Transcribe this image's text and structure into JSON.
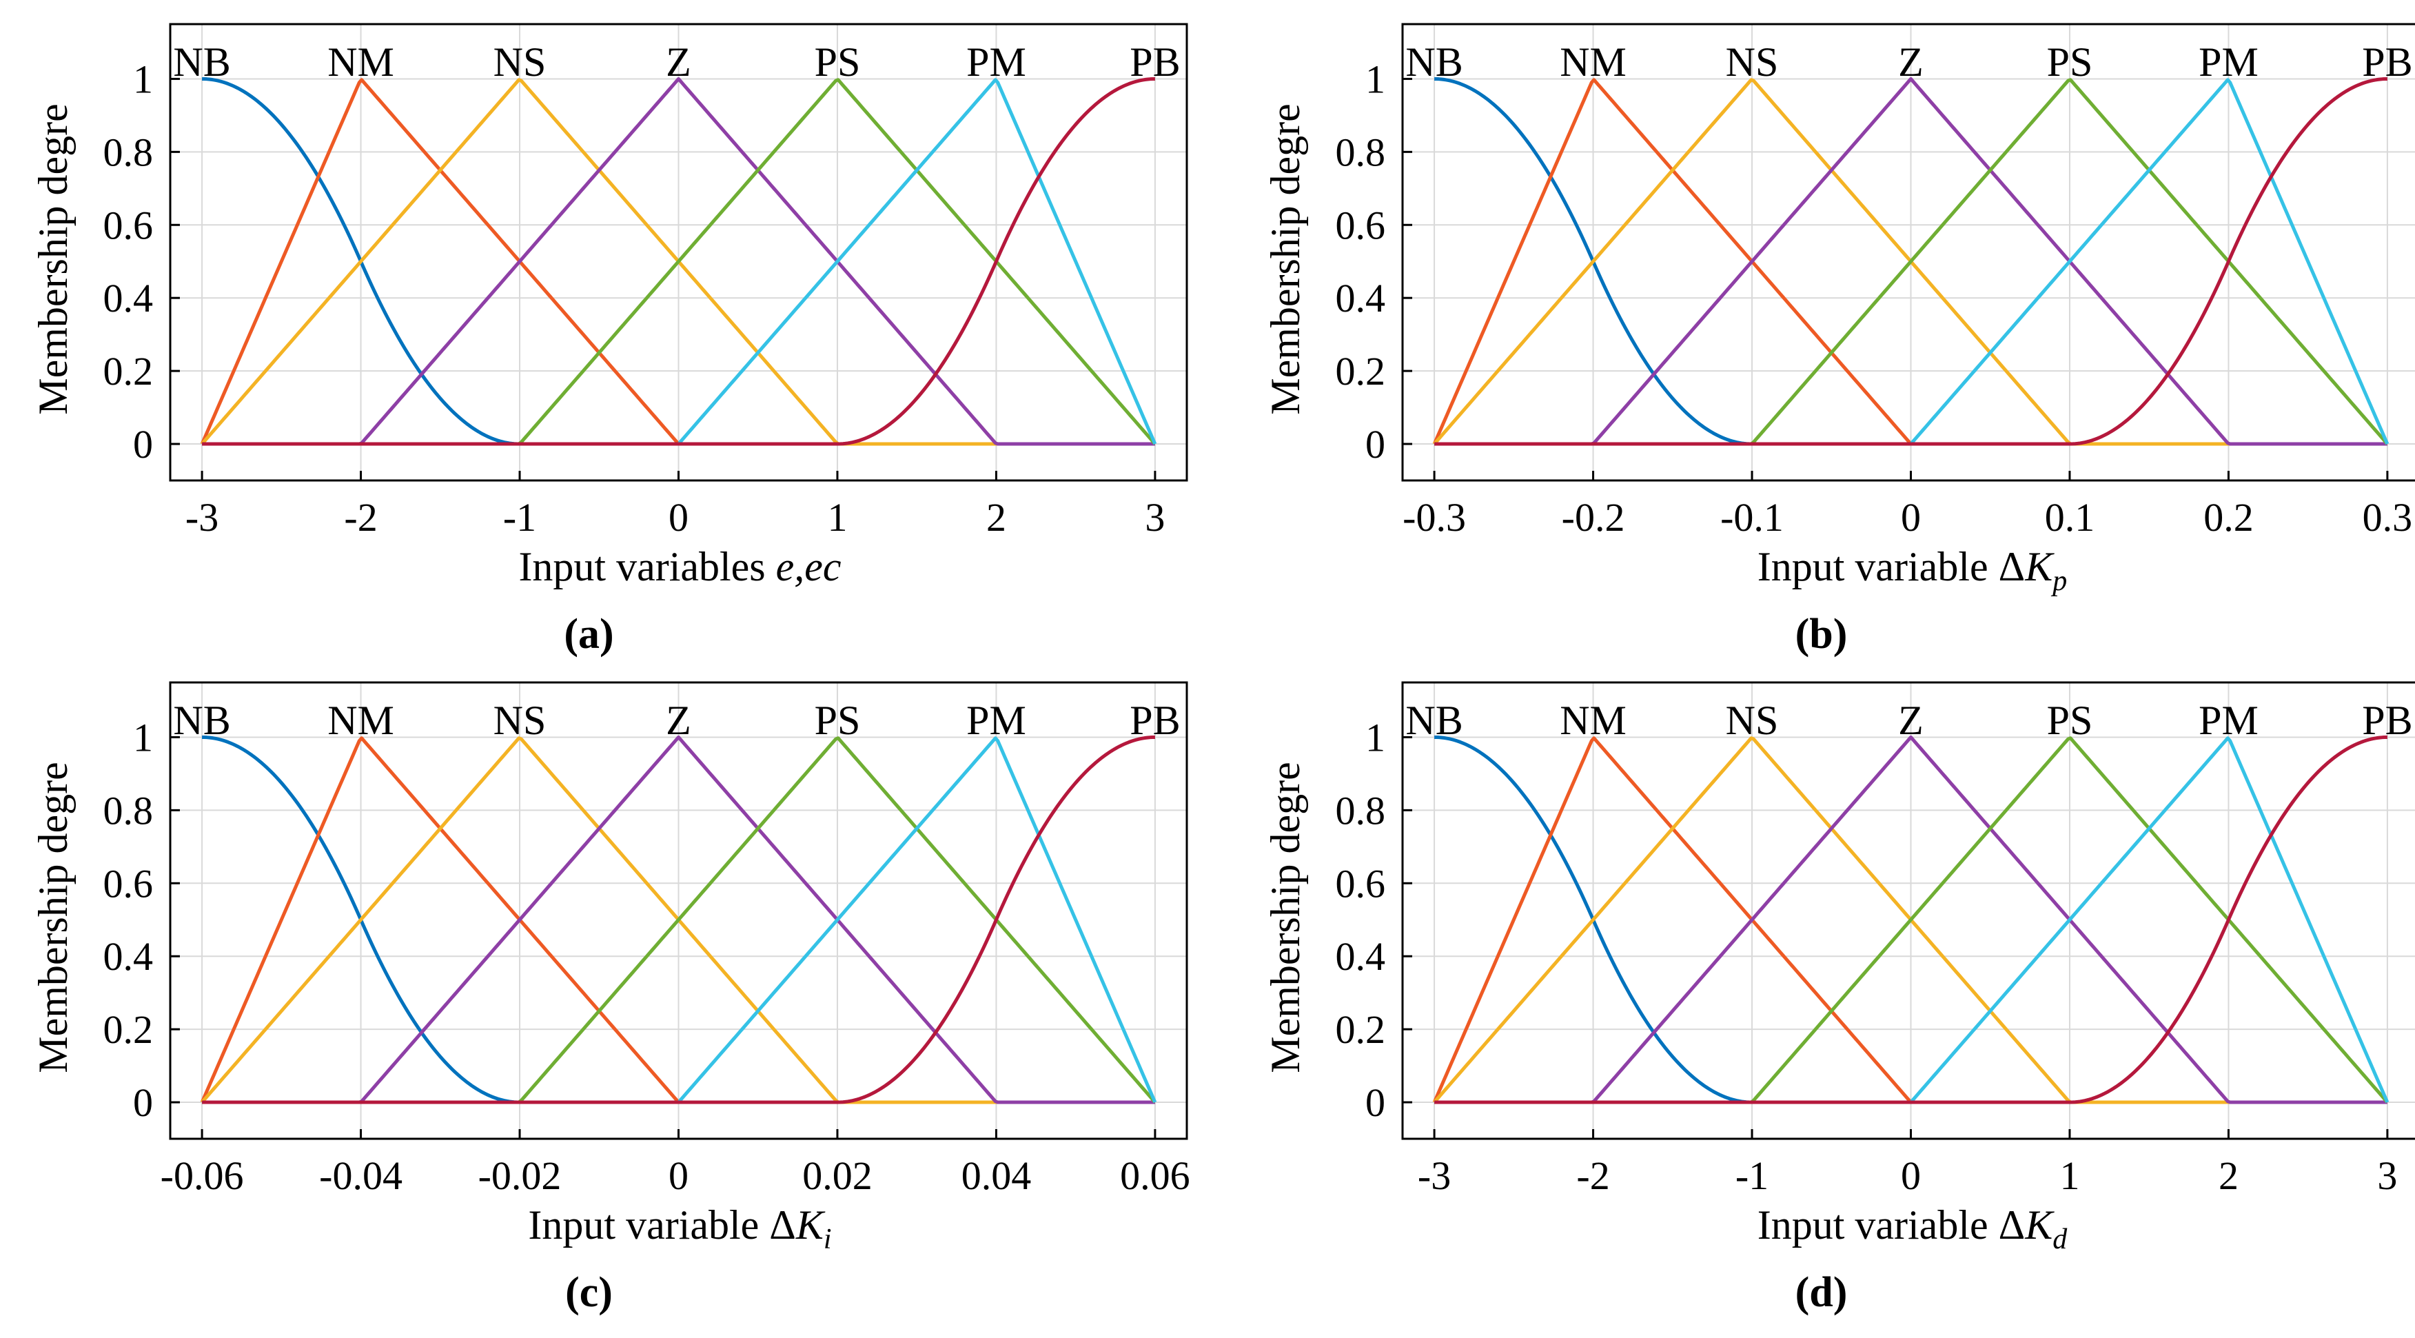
{
  "figure": {
    "colors": {
      "NB": "#0072BD",
      "NM": "#EE5A24",
      "NS": "#F4B324",
      "Z": "#8E3FA6",
      "PS": "#6FAE33",
      "PM": "#35C2E6",
      "PB": "#B5183C",
      "grid": "#d9d9d9",
      "axis": "#000000"
    }
  },
  "chart_data": [
    {
      "id": "a",
      "type": "line",
      "caption": "(a)",
      "ylabel": "Membership degre",
      "xlabel_prefix": "Input variables ",
      "xlabel_var": "e,ec",
      "xlabel_sub": "",
      "xlim": [
        -3.2,
        3.2
      ],
      "ylim": [
        -0.1,
        1.15
      ],
      "x_ticks": [
        -3,
        -2,
        -1,
        0,
        1,
        2,
        3
      ],
      "x_tick_labels": [
        "-3",
        "-2",
        "-1",
        "0",
        "1",
        "2",
        "3"
      ],
      "y_ticks": [
        0,
        0.2,
        0.4,
        0.6,
        0.8,
        1
      ],
      "y_tick_labels": [
        "0",
        "0.2",
        "0.4",
        "0.6",
        "0.8",
        "1"
      ],
      "membership_labels": [
        "NB",
        "NM",
        "NS",
        "Z",
        "PS",
        "PM",
        "PB"
      ],
      "series": [
        {
          "name": "NB",
          "shape": "zmf",
          "params": [
            -3,
            -1
          ]
        },
        {
          "name": "NM",
          "shape": "trimf",
          "params": [
            -3,
            -2,
            0
          ]
        },
        {
          "name": "NS",
          "shape": "trimf",
          "params": [
            -3,
            -1,
            1
          ]
        },
        {
          "name": "Z",
          "shape": "trimf",
          "params": [
            -2,
            0,
            2
          ]
        },
        {
          "name": "PS",
          "shape": "trimf",
          "params": [
            -1,
            1,
            3
          ]
        },
        {
          "name": "PM",
          "shape": "trimf",
          "params": [
            0,
            2,
            3
          ]
        },
        {
          "name": "PB",
          "shape": "smf",
          "params": [
            1,
            3
          ]
        }
      ]
    },
    {
      "id": "b",
      "type": "line",
      "caption": "(b)",
      "ylabel": "Membership degre",
      "xlabel_prefix": "Input variable Δ",
      "xlabel_var": "K",
      "xlabel_sub": "p",
      "xlim": [
        -0.32,
        0.32
      ],
      "ylim": [
        -0.1,
        1.15
      ],
      "x_ticks": [
        -0.3,
        -0.2,
        -0.1,
        0,
        0.1,
        0.2,
        0.3
      ],
      "x_tick_labels": [
        "-0.3",
        "-0.2",
        "-0.1",
        "0",
        "0.1",
        "0.2",
        "0.3"
      ],
      "y_ticks": [
        0,
        0.2,
        0.4,
        0.6,
        0.8,
        1
      ],
      "y_tick_labels": [
        "0",
        "0.2",
        "0.4",
        "0.6",
        "0.8",
        "1"
      ],
      "membership_labels": [
        "NB",
        "NM",
        "NS",
        "Z",
        "PS",
        "PM",
        "PB"
      ],
      "series": [
        {
          "name": "NB",
          "shape": "zmf",
          "params": [
            -0.3,
            -0.1
          ]
        },
        {
          "name": "NM",
          "shape": "trimf",
          "params": [
            -0.3,
            -0.2,
            0
          ]
        },
        {
          "name": "NS",
          "shape": "trimf",
          "params": [
            -0.3,
            -0.1,
            0.1
          ]
        },
        {
          "name": "Z",
          "shape": "trimf",
          "params": [
            -0.2,
            0,
            0.2
          ]
        },
        {
          "name": "PS",
          "shape": "trimf",
          "params": [
            -0.1,
            0.1,
            0.3
          ]
        },
        {
          "name": "PM",
          "shape": "trimf",
          "params": [
            0,
            0.2,
            0.3
          ]
        },
        {
          "name": "PB",
          "shape": "smf",
          "params": [
            0.1,
            0.3
          ]
        }
      ]
    },
    {
      "id": "c",
      "type": "line",
      "caption": "(c)",
      "ylabel": "Membership degre",
      "xlabel_prefix": "Input variable Δ",
      "xlabel_var": "K",
      "xlabel_sub": "i",
      "xlim": [
        -0.064,
        0.064
      ],
      "ylim": [
        -0.1,
        1.15
      ],
      "x_ticks": [
        -0.06,
        -0.04,
        -0.02,
        0,
        0.02,
        0.04,
        0.06
      ],
      "x_tick_labels": [
        "-0.06",
        "-0.04",
        "-0.02",
        "0",
        "0.02",
        "0.04",
        "0.06"
      ],
      "y_ticks": [
        0,
        0.2,
        0.4,
        0.6,
        0.8,
        1
      ],
      "y_tick_labels": [
        "0",
        "0.2",
        "0.4",
        "0.6",
        "0.8",
        "1"
      ],
      "membership_labels": [
        "NB",
        "NM",
        "NS",
        "Z",
        "PS",
        "PM",
        "PB"
      ],
      "series": [
        {
          "name": "NB",
          "shape": "zmf",
          "params": [
            -0.06,
            -0.02
          ]
        },
        {
          "name": "NM",
          "shape": "trimf",
          "params": [
            -0.06,
            -0.04,
            0
          ]
        },
        {
          "name": "NS",
          "shape": "trimf",
          "params": [
            -0.06,
            -0.02,
            0.02
          ]
        },
        {
          "name": "Z",
          "shape": "trimf",
          "params": [
            -0.04,
            0,
            0.04
          ]
        },
        {
          "name": "PS",
          "shape": "trimf",
          "params": [
            -0.02,
            0.02,
            0.06
          ]
        },
        {
          "name": "PM",
          "shape": "trimf",
          "params": [
            0,
            0.04,
            0.06
          ]
        },
        {
          "name": "PB",
          "shape": "smf",
          "params": [
            0.02,
            0.06
          ]
        }
      ]
    },
    {
      "id": "d",
      "type": "line",
      "caption": "(d)",
      "ylabel": "Membership degre",
      "xlabel_prefix": "Input variable Δ",
      "xlabel_var": "K",
      "xlabel_sub": "d",
      "xlim": [
        -3.2,
        3.2
      ],
      "ylim": [
        -0.1,
        1.15
      ],
      "x_ticks": [
        -3,
        -2,
        -1,
        0,
        1,
        2,
        3
      ],
      "x_tick_labels": [
        "-3",
        "-2",
        "-1",
        "0",
        "1",
        "2",
        "3"
      ],
      "y_ticks": [
        0,
        0.2,
        0.4,
        0.6,
        0.8,
        1
      ],
      "y_tick_labels": [
        "0",
        "0.2",
        "0.4",
        "0.6",
        "0.8",
        "1"
      ],
      "membership_labels": [
        "NB",
        "NM",
        "NS",
        "Z",
        "PS",
        "PM",
        "PB"
      ],
      "series": [
        {
          "name": "NB",
          "shape": "zmf",
          "params": [
            -3,
            -1
          ]
        },
        {
          "name": "NM",
          "shape": "trimf",
          "params": [
            -3,
            -2,
            0
          ]
        },
        {
          "name": "NS",
          "shape": "trimf",
          "params": [
            -3,
            -1,
            1
          ]
        },
        {
          "name": "Z",
          "shape": "trimf",
          "params": [
            -2,
            0,
            2
          ]
        },
        {
          "name": "PS",
          "shape": "trimf",
          "params": [
            -1,
            1,
            3
          ]
        },
        {
          "name": "PM",
          "shape": "trimf",
          "params": [
            0,
            2,
            3
          ]
        },
        {
          "name": "PB",
          "shape": "smf",
          "params": [
            1,
            3
          ]
        }
      ]
    }
  ]
}
